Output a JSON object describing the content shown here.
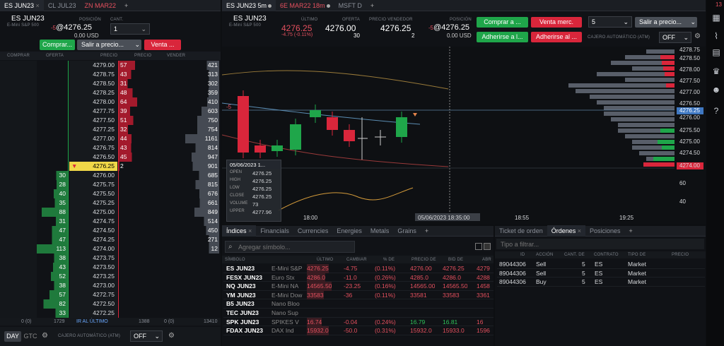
{
  "left": {
    "tabs": [
      {
        "label": "ES JUN23"
      },
      {
        "label": "CL JUL23"
      },
      {
        "label": "ZN MAR22"
      }
    ],
    "symbol": "ES JUN23",
    "symbol_desc": "E-Mini S&P 500",
    "pos_label": "POSICIÓN",
    "pos_value": "@4276.25",
    "pos_prefix": "-5",
    "pos_usd": "0.00 USD",
    "qty_label": "CANT.",
    "qty_value": "1",
    "buy_label": "Comprar...",
    "exit_label": "Salir a precio...",
    "sell_label": "Venta ...",
    "headers": {
      "buy": "COMPRAR",
      "bid": "OFERTA",
      "price": "PRECIO",
      "ask": "PRECIO",
      "sell": "VENDER"
    },
    "rows": [
      {
        "price": "4279.00",
        "ask": "57",
        "vol": "421"
      },
      {
        "price": "4278.75",
        "ask": "43",
        "vol": "313"
      },
      {
        "price": "4278.50",
        "ask": "31",
        "vol": "302"
      },
      {
        "price": "4278.25",
        "ask": "48",
        "vol": "359"
      },
      {
        "price": "4278.00",
        "ask": "64",
        "vol": "410"
      },
      {
        "price": "4277.75",
        "ask": "39",
        "vol": "603"
      },
      {
        "price": "4277.50",
        "ask": "51",
        "vol": "750"
      },
      {
        "price": "4277.25",
        "ask": "32",
        "vol": "754"
      },
      {
        "price": "4277.00",
        "ask": "44",
        "vol": "1161"
      },
      {
        "price": "4276.75",
        "ask": "43",
        "vol": "814"
      },
      {
        "price": "4276.50",
        "ask": "45",
        "vol": "947"
      },
      {
        "price": "4276.25",
        "ask": "2",
        "vol": "901",
        "current": true
      },
      {
        "price": "4276.00",
        "bid": "30",
        "vol": "685"
      },
      {
        "price": "4275.75",
        "bid": "28",
        "vol": "815"
      },
      {
        "price": "4275.50",
        "bid": "40",
        "vol": "676"
      },
      {
        "price": "4275.25",
        "bid": "35",
        "vol": "661"
      },
      {
        "price": "4275.00",
        "bid": "88",
        "vol": "849"
      },
      {
        "price": "4274.75",
        "bid": "31",
        "vol": "514"
      },
      {
        "price": "4274.50",
        "bid": "47",
        "vol": "450"
      },
      {
        "price": "4274.25",
        "bid": "47",
        "vol": "271"
      },
      {
        "price": "4274.00",
        "bid": "113",
        "vol": "12"
      },
      {
        "price": "4273.75",
        "bid": "38",
        "vol": ""
      },
      {
        "price": "4273.50",
        "bid": "43",
        "vol": ""
      },
      {
        "price": "4273.25",
        "bid": "52",
        "vol": ""
      },
      {
        "price": "4273.00",
        "bid": "38",
        "vol": ""
      },
      {
        "price": "4272.75",
        "bid": "57",
        "vol": ""
      },
      {
        "price": "4272.50",
        "bid": "82",
        "vol": ""
      },
      {
        "price": "4272.25",
        "bid": "33",
        "vol": ""
      }
    ],
    "footer": {
      "c0": "0 (0)",
      "c1": "1729",
      "c2": "IR AL ÚLTIMO",
      "c3": "1388",
      "c4": "0 (0)",
      "c5": "13410"
    },
    "bottom": {
      "day": "DAY",
      "gtc": "GTC",
      "atm_label": "CAJERO AUTOMÁTICO (ATM)",
      "atm_value": "OFF"
    }
  },
  "chart": {
    "tabs": [
      {
        "label": "ES JUN23 5m"
      },
      {
        "label": "6E MAR22 18m"
      },
      {
        "label": "MSFT D"
      }
    ],
    "symbol": "ES JUN23",
    "symbol_desc": "E-Mini S&P 500",
    "last_label": "ÚLTIMO",
    "last": "4276.25",
    "last_change": "-4.75 (-0.11%)",
    "bid_label": "OFERTA",
    "bid": "4276.00",
    "bid_size": "30",
    "ask_label": "PRECIO VENDEDOR",
    "ask": "4276.25",
    "ask_size": "2",
    "pos_label": "POSICIÓN",
    "pos_prefix": "-5",
    "pos_value": "@4276.25",
    "pos_usd": "0.00 USD",
    "buy_label": "Comprar a ...",
    "sell_mkt_label": "Venta merc.",
    "qty": "5",
    "exit_label": "Salir a precio...",
    "join_label": "Adherirse a l...",
    "join2_label": "Adherirse al ...",
    "atm_label": "CAJERO AUTOMÁTICO (ATM)",
    "atm_value": "OFF",
    "price_axis": [
      "4278.75",
      "4278.50",
      "4278.00",
      "4277.50",
      "4277.00",
      "4276.50",
      "4276.25",
      "4276.00",
      "4275.50",
      "4275.00",
      "4274.50",
      "4274.00"
    ],
    "osc_axis": [
      "60",
      "40"
    ],
    "time_axis": [
      "18:00",
      "05/06/2023 18:35:00",
      "18:55",
      "19:25"
    ],
    "tooltip": {
      "date": "05/06/2023 1...",
      "open_l": "OPEN",
      "open": "4276.25",
      "high_l": "HIGH",
      "high": "4276.25",
      "low_l": "LOW",
      "low": "4276.25",
      "close_l": "CLOSE",
      "close": "4276.25",
      "vol_l": "VOLUME",
      "vol": "73",
      "up_l": "UPPER",
      "up": "4277.96"
    },
    "marker": "-5"
  },
  "watch": {
    "tabs": [
      {
        "label": "Índices"
      },
      {
        "label": "Financials"
      },
      {
        "label": "Currencies"
      },
      {
        "label": "Energies"
      },
      {
        "label": "Metals"
      },
      {
        "label": "Grains"
      }
    ],
    "search_placeholder": "Agregar símbolo...",
    "headers": {
      "sym": "SÍMBOLO",
      "last": "ÚLTIMO",
      "chg": "CAMBIAR",
      "pct": "% DE",
      "p1": "PRECIO DE",
      "p2": "BID DE",
      "p3": "ABR"
    },
    "rows": [
      {
        "sym": "ES JUN23",
        "desc": "E-Mini S&P",
        "last": "4276.25",
        "chg": "-4.75",
        "pct": "(0.11%)",
        "p1": "4276.00",
        "p2": "4276.25",
        "p3": "4279",
        "neg": true
      },
      {
        "sym": "FESX JUN23",
        "desc": "Euro Stx",
        "last": "4286.0",
        "chg": "-11.0",
        "pct": "(0.26%)",
        "p1": "4285.0",
        "p2": "4286.0",
        "p3": "4288",
        "neg": true
      },
      {
        "sym": "NQ JUN23",
        "desc": "E-Mini NA",
        "last": "14565.50",
        "chg": "-23.25",
        "pct": "(0.16%)",
        "p1": "14565.00",
        "p2": "14565.50",
        "p3": "1458",
        "neg": true
      },
      {
        "sym": "YM JUN23",
        "desc": "E-Mini Dow",
        "last": "33583",
        "chg": "-36",
        "pct": "(0.11%)",
        "p1": "33581",
        "p2": "33583",
        "p3": "3361",
        "neg": true
      },
      {
        "sym": "B5 JUN23",
        "desc": "Nano Bloo",
        "last": "",
        "chg": "",
        "pct": "",
        "p1": "",
        "p2": "",
        "p3": ""
      },
      {
        "sym": "TEC JUN23",
        "desc": "Nano Sup",
        "last": "",
        "chg": "",
        "pct": "",
        "p1": "",
        "p2": "",
        "p3": ""
      },
      {
        "sym": "SPK JUN23",
        "desc": "SPIKES V",
        "last": "16.74",
        "chg": "-0.04",
        "pct": "(0.24%)",
        "p1": "16.79",
        "p2": "16.81",
        "p3": "16",
        "neg": true,
        "green_prices": true
      },
      {
        "sym": "FDAX JUN23",
        "desc": "DAX Ind",
        "last": "15932.0",
        "chg": "-50.0",
        "pct": "(0.31%)",
        "p1": "15932.0",
        "p2": "15933.0",
        "p3": "1596",
        "neg": true
      }
    ]
  },
  "orders": {
    "tabs": [
      {
        "label": "Ticket de orden"
      },
      {
        "label": "Órdenes"
      },
      {
        "label": "Posiciones"
      }
    ],
    "filter_placeholder": "Tipo a filtrar...",
    "headers": {
      "id": "ID",
      "action": "ACCIÓN",
      "qty": "CANT. DE",
      "contract": "CONTRATO",
      "type": "TIPO DE",
      "price": "PRECIO"
    },
    "rows": [
      {
        "id": "89044306",
        "action": "Sell",
        "qty": "5",
        "contract": "ES",
        "type": "Market"
      },
      {
        "id": "89044306",
        "action": "Sell",
        "qty": "5",
        "contract": "ES",
        "type": "Market"
      },
      {
        "id": "89044306",
        "action": "Buy",
        "qty": "5",
        "contract": "ES",
        "type": "Market"
      }
    ]
  },
  "sidebar": {
    "badge": "13"
  }
}
